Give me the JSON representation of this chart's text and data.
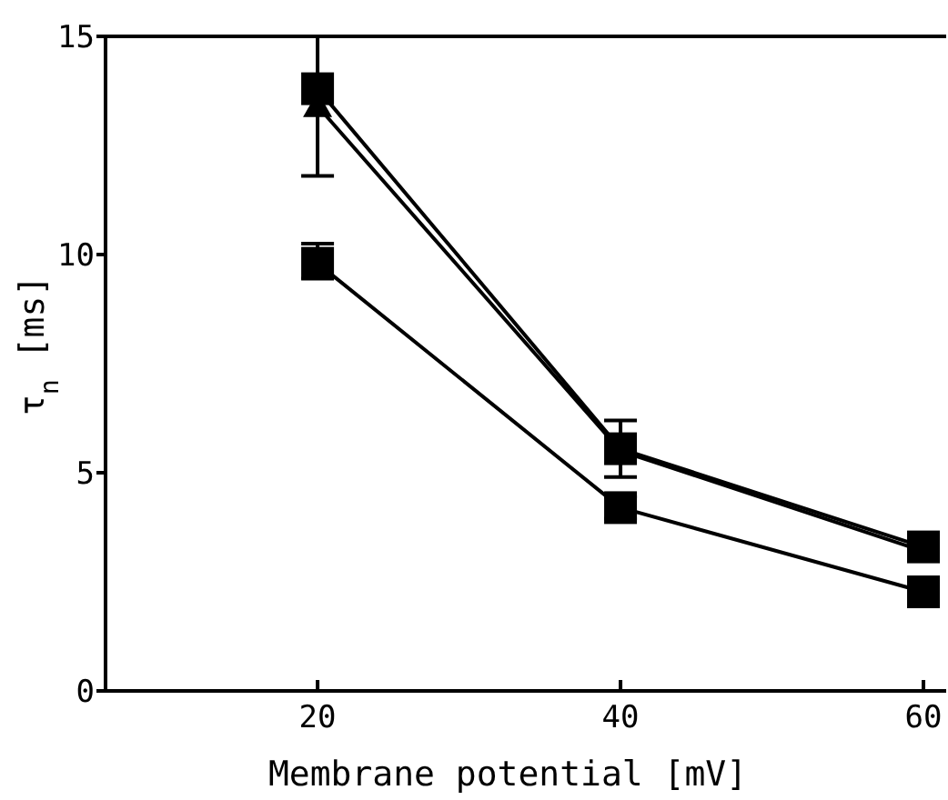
{
  "chart_data": {
    "type": "line",
    "xlabel": "Membrane potential [mV]",
    "ylabel": "τ$_{n}$ [ms]",
    "x": [
      20,
      40,
      60
    ],
    "series": [
      {
        "color": "#000000",
        "marker": "triangle",
        "values": [
          13.4,
          5.5,
          3.2
        ]
      },
      {
        "color": "#000000",
        "marker": "square",
        "values": [
          13.8,
          5.55,
          3.3
        ],
        "errors": [
          [
            11.8,
            15.0
          ],
          [
            4.9,
            6.2
          ],
          null
        ]
      },
      {
        "color": "#000000",
        "marker": "square",
        "values": [
          9.8,
          4.2,
          2.27
        ],
        "errors": [
          [
            9.45,
            10.25
          ],
          [
            3.95,
            4.45
          ],
          null
        ]
      }
    ],
    "xlim": [
      6,
      61.5
    ],
    "ylim": [
      0,
      15
    ],
    "xticks": [
      20,
      40,
      60
    ],
    "yticks": [
      0,
      5,
      10,
      15
    ],
    "grid": false,
    "line_style": "solid"
  }
}
